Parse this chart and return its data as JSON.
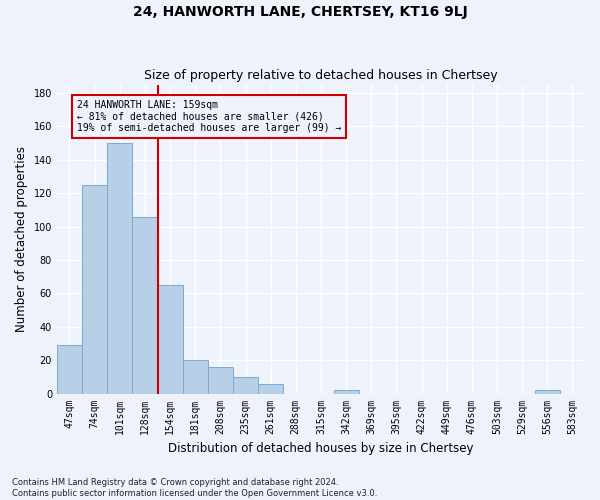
{
  "title": "24, HANWORTH LANE, CHERTSEY, KT16 9LJ",
  "subtitle": "Size of property relative to detached houses in Chertsey",
  "xlabel": "Distribution of detached houses by size in Chertsey",
  "ylabel": "Number of detached properties",
  "categories": [
    "47sqm",
    "74sqm",
    "101sqm",
    "128sqm",
    "154sqm",
    "181sqm",
    "208sqm",
    "235sqm",
    "261sqm",
    "288sqm",
    "315sqm",
    "342sqm",
    "369sqm",
    "395sqm",
    "422sqm",
    "449sqm",
    "476sqm",
    "503sqm",
    "529sqm",
    "556sqm",
    "583sqm"
  ],
  "values": [
    29,
    125,
    150,
    106,
    65,
    20,
    16,
    10,
    6,
    0,
    0,
    2,
    0,
    0,
    0,
    0,
    0,
    0,
    0,
    2,
    0
  ],
  "bar_color": "#b8cfe8",
  "bar_edge_color": "#7aaad0",
  "vline_x_index": 4,
  "vline_color": "#cc0000",
  "vline_linewidth": 1.5,
  "annotation_line1": "24 HANWORTH LANE: 159sqm",
  "annotation_line2": "← 81% of detached houses are smaller (426)",
  "annotation_line3": "19% of semi-detached houses are larger (99) →",
  "annotation_box_color": "#cc0000",
  "ylim": [
    0,
    185
  ],
  "yticks": [
    0,
    20,
    40,
    60,
    80,
    100,
    120,
    140,
    160,
    180
  ],
  "footer": "Contains HM Land Registry data © Crown copyright and database right 2024.\nContains public sector information licensed under the Open Government Licence v3.0.",
  "bg_color": "#eef2fb",
  "grid_color": "#ffffff",
  "title_fontsize": 10,
  "subtitle_fontsize": 9,
  "tick_fontsize": 7,
  "label_fontsize": 8.5,
  "footer_fontsize": 6
}
